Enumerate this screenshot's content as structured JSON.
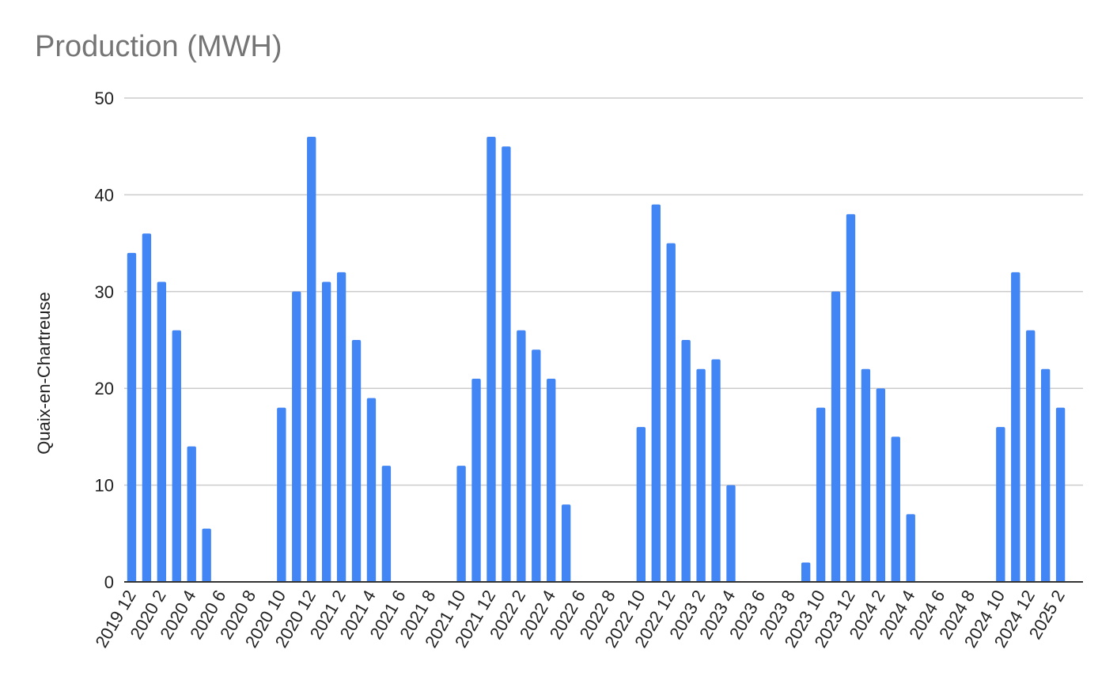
{
  "chart_data": {
    "type": "bar",
    "title": "Production (MWH)",
    "xlabel": "",
    "ylabel": "Quaix-en-Chartreuse",
    "ylim": [
      0,
      50
    ],
    "yticks": [
      0,
      10,
      20,
      30,
      40,
      50
    ],
    "grid": true,
    "legend": "none",
    "bar_color": "#4285f4",
    "categories": [
      "2019 12",
      "2020 1",
      "2020 2",
      "2020 3",
      "2020 4",
      "2020 5",
      "2020 6",
      "2020 7",
      "2020 8",
      "2020 9",
      "2020 10",
      "2020 11",
      "2020 12",
      "2021 1",
      "2021 2",
      "2021 3",
      "2021 4",
      "2021 5",
      "2021 6",
      "2021 7",
      "2021 8",
      "2021 9",
      "2021 10",
      "2021 11",
      "2021 12",
      "2022 1",
      "2022 2",
      "2022 3",
      "2022 4",
      "2022 5",
      "2022 6",
      "2022 7",
      "2022 8",
      "2022 9",
      "2022 10",
      "2022 11",
      "2022 12",
      "2023 1",
      "2023 2",
      "2023 3",
      "2023 4",
      "2023 5",
      "2023 6",
      "2023 7",
      "2023 8",
      "2023 9",
      "2023 10",
      "2023 11",
      "2023 12",
      "2024 1",
      "2024 2",
      "2024 3",
      "2024 4",
      "2024 5",
      "2024 6",
      "2024 7",
      "2024 8",
      "2024 9",
      "2024 10",
      "2024 11",
      "2024 12",
      "2025 1",
      "2025 2",
      "2025 3"
    ],
    "tick_labels": [
      "2019 12",
      "2020 2",
      "2020 4",
      "2020 6",
      "2020 8",
      "2020 10",
      "2020 12",
      "2021 2",
      "2021 4",
      "2021 6",
      "2021 8",
      "2021 10",
      "2021 12",
      "2022 2",
      "2022 4",
      "2022 6",
      "2022 8",
      "2022 10",
      "2022 12",
      "2023 2",
      "2023 4",
      "2023 6",
      "2023 8",
      "2023 10",
      "2023 12",
      "2024 2",
      "2024 4",
      "2024 6",
      "2024 8",
      "2024 10",
      "2024 12",
      "2025 2"
    ],
    "values": [
      34,
      36,
      31,
      26,
      14,
      5.5,
      0,
      0,
      0,
      0,
      18,
      30,
      46,
      31,
      32,
      25,
      19,
      12,
      0,
      0,
      0,
      0,
      12,
      21,
      46,
      45,
      26,
      24,
      21,
      8,
      0,
      0,
      0,
      0,
      16,
      39,
      35,
      25,
      22,
      23,
      10,
      0,
      0,
      0,
      0,
      2,
      18,
      30,
      38,
      22,
      20,
      15,
      7,
      0,
      0,
      0,
      0,
      0,
      16,
      32,
      26,
      22,
      18,
      0
    ]
  }
}
